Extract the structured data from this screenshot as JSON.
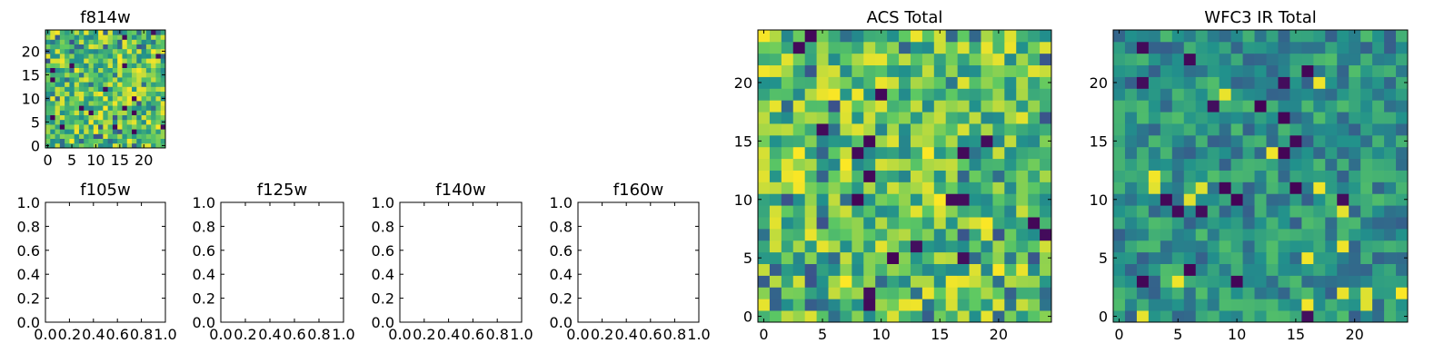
{
  "figure": {
    "background": "#ffffff"
  },
  "colormap": {
    "name": "viridis",
    "stops": [
      "#440154",
      "#3b528b",
      "#21918c",
      "#5ec962",
      "#fde725"
    ]
  },
  "chart_data": [
    {
      "id": "f814w",
      "type": "heatmap",
      "title": "f814w",
      "grid_size": 25,
      "pixel_scale": "fine",
      "xlim": [
        -0.5,
        24.5
      ],
      "ylim": [
        -0.5,
        24.5
      ],
      "xticks": [
        "0",
        "5",
        "10",
        "15",
        "20"
      ],
      "yticks": [
        "0",
        "5",
        "10",
        "15",
        "20"
      ],
      "xtick_values": [
        0,
        5,
        10,
        15,
        20
      ],
      "ytick_values": [
        0,
        5,
        10,
        15,
        20
      ],
      "value_range": [
        0,
        1
      ],
      "seed": 11,
      "generator": "mostly high values (green/yellow) with scattered dark pixels"
    },
    {
      "id": "f105w",
      "type": "empty",
      "title": "f105w",
      "xlim": [
        0,
        1
      ],
      "ylim": [
        0,
        1
      ],
      "xticks": [
        "0.0",
        "0.2",
        "0.4",
        "0.6",
        "0.8",
        "1.0"
      ],
      "yticks": [
        "0.0",
        "0.2",
        "0.4",
        "0.6",
        "0.8",
        "1.0"
      ],
      "xtick_values": [
        0,
        0.2,
        0.4,
        0.6,
        0.8,
        1.0
      ],
      "ytick_values": [
        0,
        0.2,
        0.4,
        0.6,
        0.8,
        1.0
      ]
    },
    {
      "id": "f125w",
      "type": "empty",
      "title": "f125w",
      "xlim": [
        0,
        1
      ],
      "ylim": [
        0,
        1
      ],
      "xticks": [
        "0.0",
        "0.2",
        "0.4",
        "0.6",
        "0.8",
        "1.0"
      ],
      "yticks": [
        "0.0",
        "0.2",
        "0.4",
        "0.6",
        "0.8",
        "1.0"
      ],
      "xtick_values": [
        0,
        0.2,
        0.4,
        0.6,
        0.8,
        1.0
      ],
      "ytick_values": [
        0,
        0.2,
        0.4,
        0.6,
        0.8,
        1.0
      ]
    },
    {
      "id": "f140w",
      "type": "empty",
      "title": "f140w",
      "xlim": [
        0,
        1
      ],
      "ylim": [
        0,
        1
      ],
      "xticks": [
        "0.0",
        "0.2",
        "0.4",
        "0.6",
        "0.8",
        "1.0"
      ],
      "yticks": [
        "0.0",
        "0.2",
        "0.4",
        "0.6",
        "0.8",
        "1.0"
      ],
      "xtick_values": [
        0,
        0.2,
        0.4,
        0.6,
        0.8,
        1.0
      ],
      "ytick_values": [
        0,
        0.2,
        0.4,
        0.6,
        0.8,
        1.0
      ]
    },
    {
      "id": "f160w",
      "type": "empty",
      "title": "f160w",
      "xlim": [
        0,
        1
      ],
      "ylim": [
        0,
        1
      ],
      "xticks": [
        "0.0",
        "0.2",
        "0.4",
        "0.6",
        "0.8",
        "1.0"
      ],
      "yticks": [
        "0.0",
        "0.2",
        "0.4",
        "0.6",
        "0.8",
        "1.0"
      ],
      "xtick_values": [
        0,
        0.2,
        0.4,
        0.6,
        0.8,
        1.0
      ],
      "ytick_values": [
        0,
        0.2,
        0.4,
        0.6,
        0.8,
        1.0
      ]
    },
    {
      "id": "acs-total",
      "type": "heatmap",
      "title": "ACS Total",
      "grid_size": 25,
      "xlim": [
        -0.5,
        24.5
      ],
      "ylim": [
        -0.5,
        24.5
      ],
      "xticks": [
        "0",
        "5",
        "10",
        "15",
        "20"
      ],
      "yticks": [
        "0",
        "5",
        "10",
        "15",
        "20"
      ],
      "xtick_values": [
        0,
        5,
        10,
        15,
        20
      ],
      "ytick_values": [
        0,
        5,
        10,
        15,
        20
      ],
      "value_range": [
        0,
        1
      ],
      "seed": 23,
      "generator": "mostly high values (green/yellow) with scattered dark pixels"
    },
    {
      "id": "wfc3-ir-total",
      "type": "heatmap",
      "title": "WFC3 IR Total",
      "grid_size": 25,
      "xlim": [
        -0.5,
        24.5
      ],
      "ylim": [
        -0.5,
        24.5
      ],
      "xticks": [
        "0",
        "5",
        "10",
        "15",
        "20"
      ],
      "yticks": [
        "0",
        "5",
        "10",
        "15",
        "20"
      ],
      "xtick_values": [
        0,
        5,
        10,
        15,
        20
      ],
      "ytick_values": [
        0,
        5,
        10,
        15,
        20
      ],
      "value_range": [
        0,
        1
      ],
      "seed": 37,
      "generator": "mostly mid values (teal/green) with a few yellow and dark pixels"
    }
  ]
}
